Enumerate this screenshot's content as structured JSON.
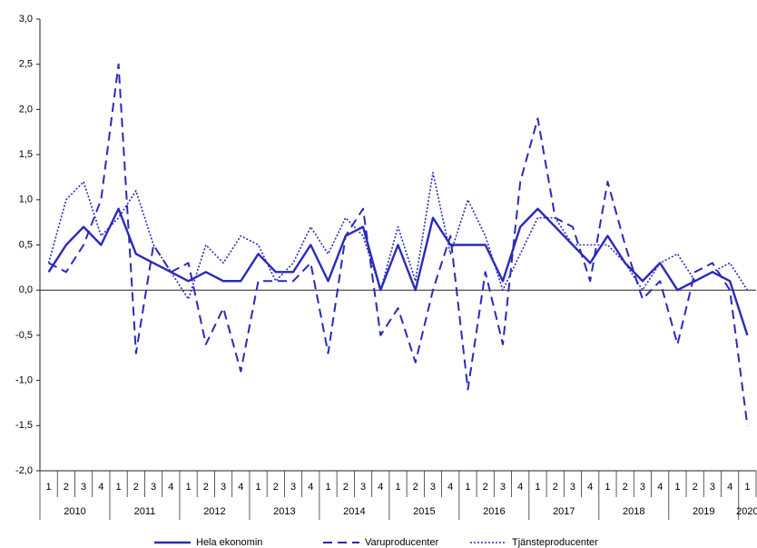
{
  "chart_data": {
    "type": "line",
    "categories": [
      "1",
      "2",
      "3",
      "4",
      "1",
      "2",
      "3",
      "4",
      "1",
      "2",
      "3",
      "4",
      "1",
      "2",
      "3",
      "4",
      "1",
      "2",
      "3",
      "4",
      "1",
      "2",
      "3",
      "4",
      "1",
      "2",
      "3",
      "4",
      "1",
      "2",
      "3",
      "4",
      "1",
      "2",
      "3",
      "4",
      "1",
      "2",
      "3",
      "4",
      "1"
    ],
    "years": [
      "2010",
      "2011",
      "2012",
      "2013",
      "2014",
      "2015",
      "2016",
      "2017",
      "2018",
      "2019",
      "2020"
    ],
    "series": [
      {
        "name": "Hela ekonomin",
        "color": "#2a2ab8",
        "style": "solid",
        "values": [
          0.2,
          0.5,
          0.7,
          0.5,
          0.9,
          0.4,
          0.3,
          0.2,
          0.1,
          0.2,
          0.1,
          0.1,
          0.4,
          0.2,
          0.2,
          0.5,
          0.1,
          0.6,
          0.7,
          0.0,
          0.5,
          0.0,
          0.8,
          0.5,
          0.5,
          0.5,
          0.1,
          0.7,
          0.9,
          0.7,
          0.5,
          0.3,
          0.6,
          0.3,
          0.1,
          0.3,
          0.0,
          0.1,
          0.2,
          0.1,
          -0.5
        ]
      },
      {
        "name": "Varuproducenter",
        "color": "#2a2ab8",
        "style": "dashed",
        "values": [
          0.3,
          0.2,
          0.5,
          1.0,
          2.5,
          -0.7,
          0.5,
          0.2,
          0.3,
          -0.6,
          -0.2,
          -0.9,
          0.1,
          0.1,
          0.1,
          0.3,
          -0.7,
          0.6,
          0.9,
          -0.5,
          -0.2,
          -0.8,
          0.0,
          0.6,
          -1.1,
          0.2,
          -0.6,
          1.2,
          1.9,
          0.8,
          0.7,
          0.1,
          1.2,
          0.5,
          -0.1,
          0.1,
          -0.6,
          0.2,
          0.3,
          0.0,
          -1.5
        ]
      },
      {
        "name": "Tjänsteproducenter",
        "color": "#2a2ab8",
        "style": "dotted",
        "values": [
          0.3,
          1.0,
          1.2,
          0.6,
          0.8,
          1.1,
          0.5,
          0.2,
          -0.1,
          0.5,
          0.3,
          0.6,
          0.5,
          0.1,
          0.3,
          0.7,
          0.4,
          0.8,
          0.6,
          0.0,
          0.7,
          0.1,
          1.3,
          0.4,
          1.0,
          0.6,
          0.0,
          0.4,
          0.8,
          0.8,
          0.5,
          0.5,
          0.5,
          0.3,
          0.0,
          0.3,
          0.4,
          0.1,
          0.2,
          0.3,
          0.0
        ]
      }
    ],
    "ylim": [
      -2.0,
      3.0
    ],
    "yticks": [
      {
        "value": -2.0,
        "label": "-2,0"
      },
      {
        "value": -1.5,
        "label": "-1,5"
      },
      {
        "value": -1.0,
        "label": "-1,0"
      },
      {
        "value": -0.5,
        "label": "-0,5"
      },
      {
        "value": 0.0,
        "label": "0,0"
      },
      {
        "value": 0.5,
        "label": "0,5"
      },
      {
        "value": 1.0,
        "label": "1,0"
      },
      {
        "value": 1.5,
        "label": "1,5"
      },
      {
        "value": 2.0,
        "label": "2,0"
      },
      {
        "value": 2.5,
        "label": "2,5"
      },
      {
        "value": 3.0,
        "label": "3,0"
      }
    ],
    "legend": "bottom",
    "grid": false
  }
}
